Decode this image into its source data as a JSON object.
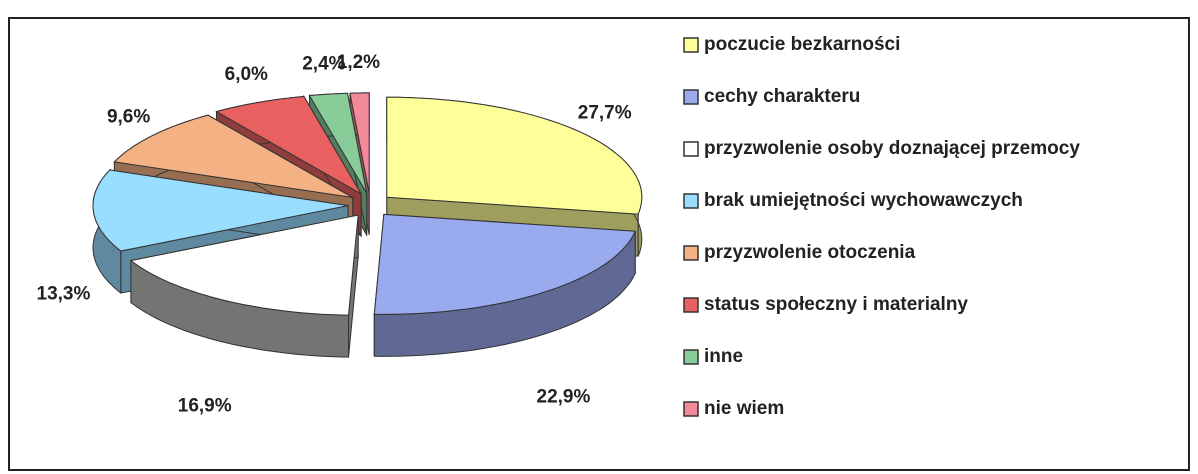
{
  "chart_data": {
    "type": "pie3d",
    "categories": [
      "poczucie bezkarności",
      "cechy charakteru",
      "przyzwolenie osoby doznającej przemocy",
      "brak umiejętności wychowawczych",
      "przyzwolenie otoczenia",
      "status społeczny i materialny",
      "inne",
      "nie wiem"
    ],
    "values": [
      27.7,
      22.9,
      16.9,
      13.3,
      9.6,
      6.0,
      2.4,
      1.2
    ],
    "value_labels": [
      "27,7%",
      "22,9%",
      "16,9%",
      "13,3%",
      "9,6%",
      "6,0%",
      "2,4%",
      "1,2%"
    ],
    "colors": [
      "#ffff99",
      "#99aaee",
      "#ffffff",
      "#99ddff",
      "#f4b183",
      "#e86060",
      "#88cc99",
      "#f28a9a"
    ],
    "legend": "right"
  }
}
